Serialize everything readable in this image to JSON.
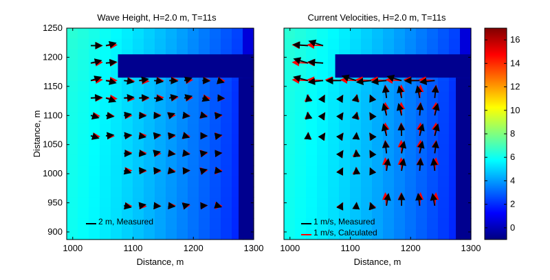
{
  "chart_data": [
    {
      "type": "heatmap",
      "title": "Wave Height, H=2.0 m, T=11s",
      "xlabel": "Distance, m",
      "ylabel": "Distance, m",
      "xlim": [
        990,
        1300
      ],
      "ylim": [
        887,
        1250
      ],
      "xticks": [
        1000,
        1100,
        1200,
        1300
      ],
      "yticks": [
        900,
        950,
        1000,
        1050,
        1100,
        1150,
        1200,
        1250
      ],
      "structure": "breakwater (dark blue) from x=1075 to 1300 above y=1165; open-water shoreline band near x=1275-1300",
      "legend": [
        {
          "label": "2 m, Measured",
          "color": "#000000"
        }
      ],
      "field": "wave height (m), low near the structure, ~6-7 m to the left and top",
      "arrows": {
        "rows_y": [
          1220,
          1190,
          1160,
          1130,
          1100,
          1065,
          1035,
          1005,
          945
        ],
        "measured_color": "#000000",
        "calculated_color": "#ff0000"
      }
    },
    {
      "type": "heatmap",
      "title": "Current Velocities, H=2.0 m, T=11s",
      "xlabel": "Distance, m",
      "ylabel": "",
      "xlim": [
        990,
        1300
      ],
      "ylim": [
        887,
        1250
      ],
      "xticks": [
        1000,
        1100,
        1200,
        1300
      ],
      "legend": [
        {
          "label": "1 m/s, Measured",
          "color": "#000000"
        },
        {
          "label": "1 m/s, Calculated",
          "color": "#ff0000"
        }
      ],
      "field": "current velocity field under same wave condition"
    }
  ],
  "colorbar": {
    "min": -1,
    "max": 17,
    "ticks": [
      0,
      2,
      4,
      6,
      8,
      10,
      12,
      14,
      16
    ]
  }
}
